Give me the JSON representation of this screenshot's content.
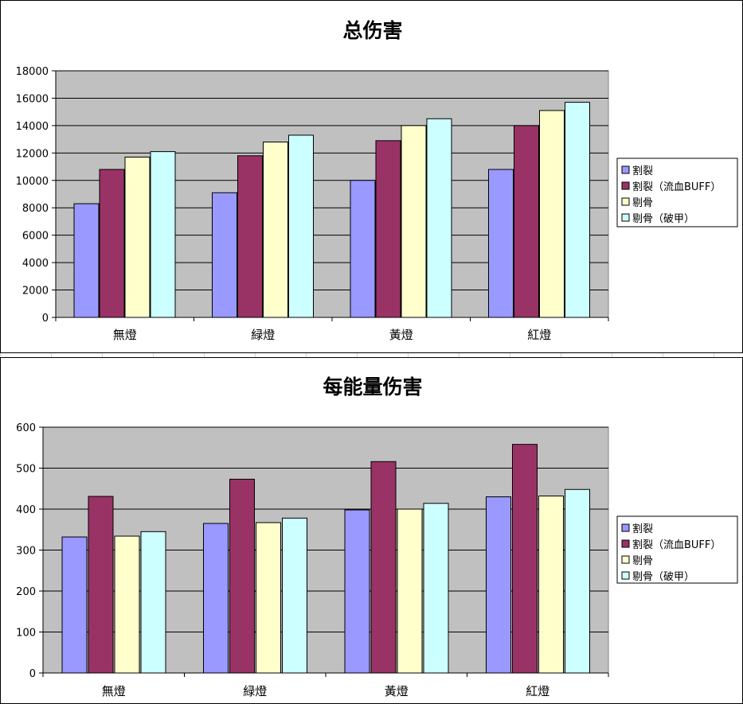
{
  "chart_data": [
    {
      "type": "bar",
      "title": "总伤害",
      "categories": [
        "無燈",
        "緑燈",
        "黃燈",
        "紅燈"
      ],
      "ylim": [
        0,
        18000
      ],
      "yticks": [
        0,
        2000,
        4000,
        6000,
        8000,
        10000,
        12000,
        14000,
        16000,
        18000
      ],
      "grid": true,
      "legend_position": "right",
      "series": [
        {
          "name": "割裂",
          "color": "#9999ff",
          "values": [
            8300,
            9100,
            10000,
            10800
          ]
        },
        {
          "name": "割裂（流血BUFF）",
          "color": "#993366",
          "values": [
            10800,
            11800,
            12900,
            14000
          ]
        },
        {
          "name": "剔骨",
          "color": "#ffffcc",
          "values": [
            11700,
            12800,
            14000,
            15100
          ]
        },
        {
          "name": "剔骨（破甲）",
          "color": "#ccffff",
          "values": [
            12100,
            13300,
            14500,
            15700
          ]
        }
      ]
    },
    {
      "type": "bar",
      "title": "每能量伤害",
      "categories": [
        "無燈",
        "緑燈",
        "黃燈",
        "紅燈"
      ],
      "ylim": [
        0,
        600
      ],
      "yticks": [
        0,
        100,
        200,
        300,
        400,
        500,
        600
      ],
      "grid": true,
      "legend_position": "right",
      "series": [
        {
          "name": "割裂",
          "color": "#9999ff",
          "values": [
            332,
            365,
            398,
            430
          ]
        },
        {
          "name": "割裂（流血BUFF）",
          "color": "#993366",
          "values": [
            431,
            473,
            516,
            558
          ]
        },
        {
          "name": "剔骨",
          "color": "#ffffcc",
          "values": [
            334,
            367,
            400,
            432
          ]
        },
        {
          "name": "剔骨（破甲）",
          "color": "#ccffff",
          "values": [
            345,
            378,
            414,
            448
          ]
        }
      ]
    }
  ]
}
